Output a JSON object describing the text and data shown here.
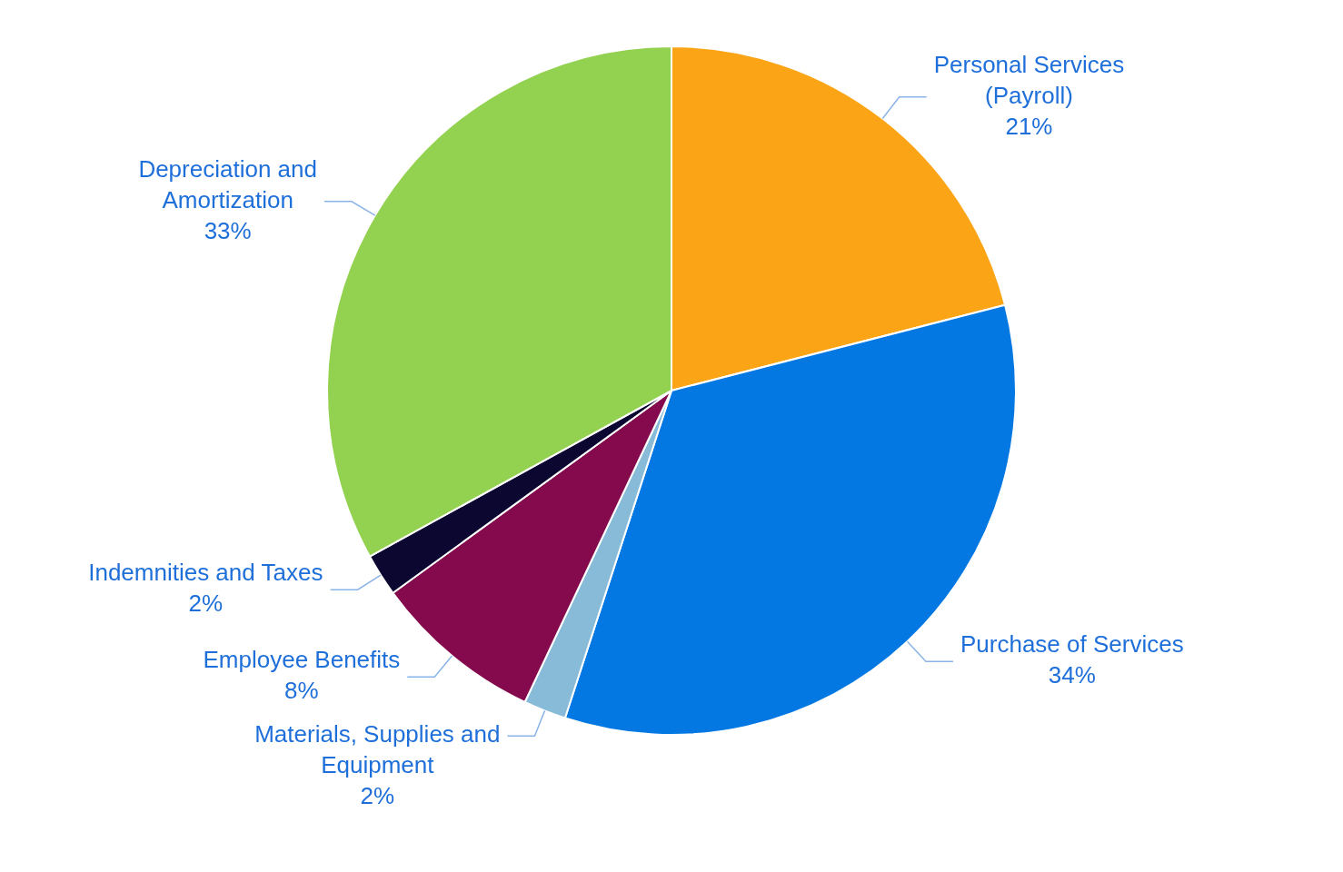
{
  "chart_data": {
    "type": "pie",
    "categories": [
      "Personal Services (Payroll)",
      "Purchase of Services",
      "Materials, Supplies and Equipment",
      "Employee Benefits",
      "Indemnities and Taxes",
      "Depreciation and Amortization"
    ],
    "values": [
      21,
      34,
      2,
      8,
      2,
      33
    ],
    "value_labels": [
      "21%",
      "34%",
      "2%",
      "8%",
      "2%",
      "33%"
    ],
    "colors": [
      "#fba416",
      "#0377e2",
      "#88bbd8",
      "#850a4d",
      "#0b0731",
      "#93d150"
    ],
    "legend": false
  }
}
